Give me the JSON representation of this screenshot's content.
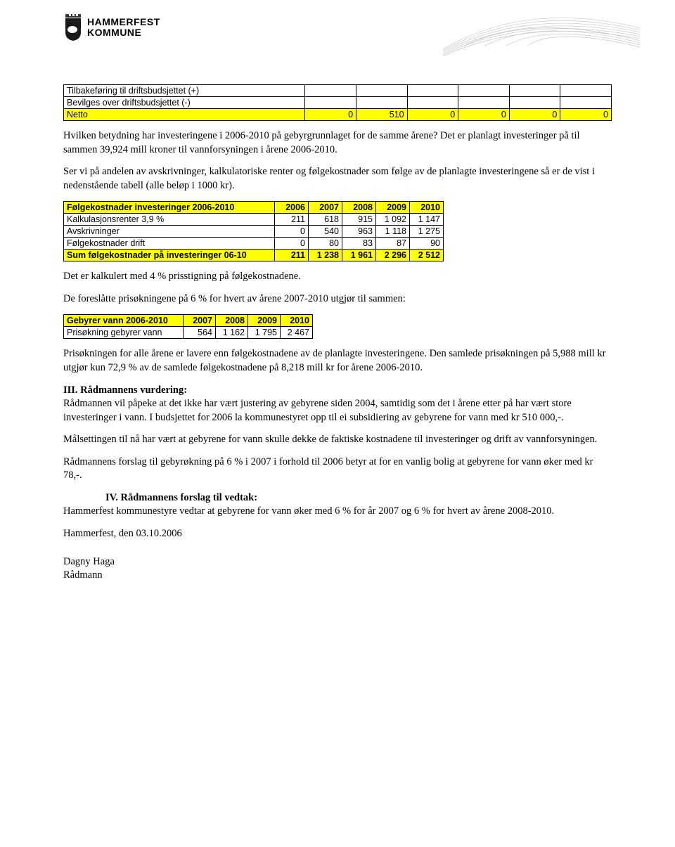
{
  "logo": {
    "line1": "HAMMERFEST",
    "line2": "KOMMUNE"
  },
  "table1": {
    "rows": [
      {
        "label": "Tilbakeføring til driftsbudsjettet (+)",
        "vals": [
          "",
          "",
          "",
          "",
          "",
          ""
        ],
        "hl": false,
        "bold": false
      },
      {
        "label": "Bevilges over driftsbudsjettet (-)",
        "vals": [
          "",
          "",
          "",
          "",
          "",
          ""
        ],
        "hl": false,
        "bold": false
      },
      {
        "label": "Netto",
        "vals": [
          "0",
          "510",
          "0",
          "0",
          "0",
          "0"
        ],
        "hl": true,
        "bold": false
      }
    ],
    "bg_hl": "#ffff00"
  },
  "para1": "Hvilken betydning har investeringene i 2006-2010 på gebyrgrunnlaget for de samme årene? Det er planlagt investeringer på til sammen 39,924 mill kroner til vannforsyningen i årene 2006-2010.",
  "para2": "Ser vi på andelen av avskrivninger, kalkulatoriske renter og følgekostnader som følge av de planlagte investeringene så er de vist i nedenstående tabell (alle beløp i 1000 kr).",
  "table2": {
    "header": {
      "label": "Følgekostnader investeringer 2006-2010",
      "cols": [
        "2006",
        "2007",
        "2008",
        "2009",
        "2010"
      ]
    },
    "rows": [
      {
        "label": "Kalkulasjonsrenter 3,9 %",
        "vals": [
          "211",
          "618",
          "915",
          "1 092",
          "1 147"
        ],
        "hl": false,
        "bold": false
      },
      {
        "label": "Avskrivninger",
        "vals": [
          "0",
          "540",
          "963",
          "1 118",
          "1 275"
        ],
        "hl": false,
        "bold": false
      },
      {
        "label": "Følgekostnader drift",
        "vals": [
          "0",
          "80",
          "83",
          "87",
          "90"
        ],
        "hl": false,
        "bold": false
      },
      {
        "label": "Sum følgekostnader på investeringer 06-10",
        "vals": [
          "211",
          "1 238",
          "1 961",
          "2 296",
          "2 512"
        ],
        "hl": true,
        "bold": true
      }
    ],
    "bg_hl": "#ffff00"
  },
  "para3": "Det er kalkulert med 4 % prisstigning på følgekostnadene.",
  "para4": "De foreslåtte prisøkningene på 6 % for hvert av årene 2007-2010 utgjør til sammen:",
  "table3": {
    "header": {
      "label": "Gebyrer vann 2006-2010",
      "cols": [
        "2007",
        "2008",
        "2009",
        "2010"
      ]
    },
    "rows": [
      {
        "label": "Prisøkning gebyrer vann",
        "vals": [
          "564",
          "1 162",
          "1 795",
          "2 467"
        ],
        "hl": false,
        "bold": false
      }
    ],
    "bg_hl": "#ffff00"
  },
  "para5": "Prisøkningen for alle årene er lavere enn følgekostnadene av de planlagte investeringene. Den samlede prisøkningen på 5,988 mill kr utgjør kun 72,9 % av de samlede følgekostnadene på 8,218 mill kr for årene 2006-2010.",
  "heading3": "III. Rådmannens vurdering:",
  "para6": "Rådmannen vil påpeke at det ikke har vært justering av gebyrene siden 2004, samtidig som det i årene etter på har vært store investeringer i vann. I budsjettet for 2006 la kommunestyret opp til ei subsidiering av gebyrene for vann med kr 510 000,-.",
  "para7": "Målsettingen til nå har vært at gebyrene for vann skulle dekke de faktiske kostnadene til investeringer og drift av vannforsyningen.",
  "para8": "Rådmannens forslag til gebyrøkning på 6 % i 2007 i forhold til 2006 betyr at for en vanlig bolig at gebyrene for vann øker med kr 78,-.",
  "heading4": "IV. Rådmannens forslag til vedtak:",
  "para9": "Hammerfest kommunestyre vedtar at gebyrene for vann øker med 6 % for år 2007 og 6 % for hvert av årene 2008-2010.",
  "para10": "Hammerfest, den 03.10.2006",
  "sig1": "Dagny Haga",
  "sig2": "Rådmann"
}
